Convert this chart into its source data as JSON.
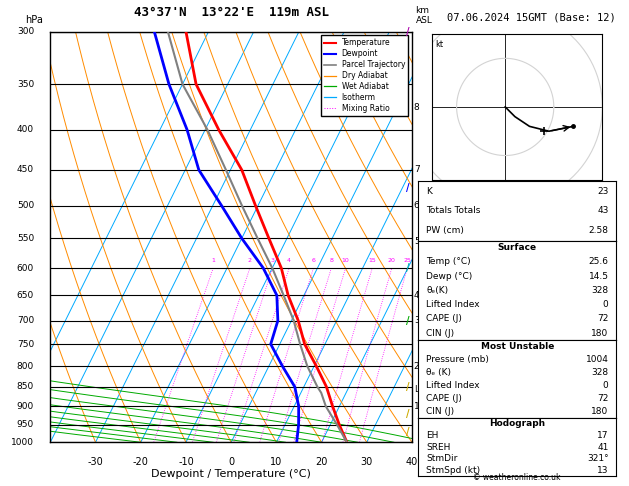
{
  "title_left": "43°37'N  13°22'E  119m ASL",
  "title_right": "07.06.2024 15GMT (Base: 12)",
  "xlabel": "Dewpoint / Temperature (°C)",
  "pressure_levels": [
    300,
    350,
    400,
    450,
    500,
    550,
    600,
    650,
    700,
    750,
    800,
    850,
    900,
    950,
    1000
  ],
  "temp_profile": {
    "pressure": [
      1000,
      950,
      900,
      850,
      800,
      750,
      700,
      650,
      600,
      550,
      500,
      450,
      400,
      350,
      300
    ],
    "temp": [
      25.6,
      22.0,
      18.5,
      15.0,
      10.5,
      5.5,
      1.5,
      -3.5,
      -8.0,
      -14.0,
      -20.5,
      -27.5,
      -37.0,
      -47.0,
      -55.0
    ]
  },
  "dewpoint_profile": {
    "pressure": [
      1000,
      950,
      900,
      850,
      800,
      750,
      700,
      650,
      600,
      550,
      500,
      450,
      400,
      350,
      300
    ],
    "temp": [
      14.5,
      13.0,
      11.0,
      8.0,
      3.0,
      -2.0,
      -3.0,
      -6.0,
      -12.0,
      -20.0,
      -28.0,
      -37.0,
      -44.0,
      -53.0,
      -62.0
    ]
  },
  "parcel_profile": {
    "pressure": [
      1000,
      950,
      900,
      865,
      850,
      800,
      750,
      700,
      650,
      600,
      550,
      500,
      450,
      400,
      350,
      300
    ],
    "temp": [
      25.6,
      21.5,
      17.0,
      14.5,
      13.0,
      8.5,
      4.5,
      0.5,
      -4.5,
      -10.0,
      -16.5,
      -23.5,
      -31.0,
      -39.5,
      -50.0,
      -59.0
    ]
  },
  "lcl_pressure": 856,
  "mixing_ratios": [
    1,
    2,
    3,
    4,
    6,
    8,
    10,
    15,
    20,
    25
  ],
  "km_labels": {
    "8": 375,
    "7": 450,
    "6": 500,
    "5": 555,
    "4": 650,
    "3": 700,
    "2": 800,
    "1": 900
  },
  "colors": {
    "temperature": "#ff0000",
    "dewpoint": "#0000ff",
    "parcel": "#808080",
    "dry_adiabat": "#ff8c00",
    "wet_adiabat": "#00aa00",
    "isotherm": "#00aaff",
    "mixing_ratio": "#ff00ff",
    "background": "#ffffff",
    "grid": "#000000"
  },
  "hodograph_curve": [
    [
      0,
      0
    ],
    [
      2,
      -2
    ],
    [
      5,
      -4
    ],
    [
      9,
      -5
    ],
    [
      14,
      -4
    ]
  ],
  "hodo_storm_motion": [
    8,
    -5
  ],
  "stats": {
    "K": 23,
    "Totals Totals": 43,
    "PW (cm)": 2.58,
    "Surface Temp": 25.6,
    "Surface Dewp": 14.5,
    "Surface thetae": 328,
    "Surface LI": 0,
    "Surface CAPE": 72,
    "Surface CIN": 180,
    "MU Pressure": 1004,
    "MU thetae": 328,
    "MU LI": 0,
    "MU CAPE": 72,
    "MU CIN": 180,
    "EH": 17,
    "SREH": 41,
    "StmDir": "321°",
    "StmSpd": 13
  }
}
